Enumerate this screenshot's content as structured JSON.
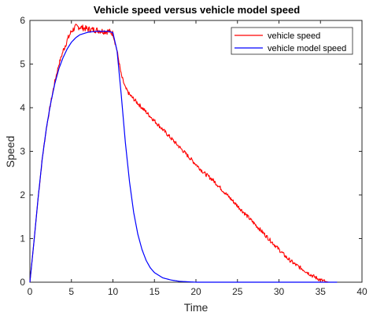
{
  "chart_data": {
    "type": "line",
    "title": "Vehicle speed versus vehicle model speed",
    "xlabel": "Time",
    "ylabel": "Speed",
    "xlim": [
      0,
      40
    ],
    "ylim": [
      0,
      6
    ],
    "xticks": [
      0,
      5,
      10,
      15,
      20,
      25,
      30,
      35,
      40
    ],
    "yticks": [
      0,
      1,
      2,
      3,
      4,
      5,
      6
    ],
    "grid": false,
    "legend_position": "top-right",
    "series": [
      {
        "name": "vehicle speed",
        "color": "#ff0000",
        "noisy": true,
        "x": [
          0,
          0.5,
          1,
          1.5,
          2,
          2.5,
          3,
          3.5,
          4,
          4.5,
          5,
          5.5,
          6,
          7,
          8,
          9,
          9.5,
          10,
          10.5,
          11,
          11.5,
          12,
          13,
          14,
          15,
          16,
          17,
          18,
          19,
          20,
          21,
          22,
          23,
          24,
          25,
          26,
          27,
          28,
          29,
          30,
          31,
          32,
          33,
          34,
          35,
          35.5,
          36,
          36.5,
          37
        ],
        "y": [
          0,
          0.95,
          1.95,
          2.85,
          3.55,
          4.1,
          4.6,
          5.0,
          5.3,
          5.55,
          5.75,
          5.85,
          5.85,
          5.8,
          5.78,
          5.75,
          5.75,
          5.7,
          5.3,
          4.75,
          4.45,
          4.3,
          4.1,
          3.9,
          3.7,
          3.5,
          3.3,
          3.1,
          2.9,
          2.7,
          2.5,
          2.35,
          2.15,
          1.95,
          1.75,
          1.55,
          1.35,
          1.15,
          0.95,
          0.75,
          0.55,
          0.4,
          0.28,
          0.15,
          0.05,
          0.02,
          0.0,
          0.0,
          0.0
        ]
      },
      {
        "name": "vehicle model speed",
        "color": "#0000ff",
        "noisy": false,
        "x": [
          0,
          0.5,
          1,
          1.5,
          2,
          2.5,
          3,
          3.5,
          4,
          4.5,
          5,
          5.5,
          6,
          7,
          8,
          9,
          9.5,
          10,
          10.5,
          11,
          11.5,
          12,
          12.5,
          13,
          13.5,
          14,
          14.5,
          15,
          16,
          17,
          18,
          19,
          20,
          25,
          30,
          35,
          37
        ],
        "y": [
          0,
          0.95,
          1.95,
          2.85,
          3.55,
          4.1,
          4.55,
          4.9,
          5.15,
          5.35,
          5.5,
          5.6,
          5.67,
          5.73,
          5.75,
          5.75,
          5.75,
          5.72,
          5.3,
          4.3,
          3.2,
          2.3,
          1.6,
          1.1,
          0.75,
          0.5,
          0.33,
          0.22,
          0.1,
          0.05,
          0.02,
          0.01,
          0.0,
          0.0,
          0.0,
          0.0,
          0.0
        ]
      }
    ]
  }
}
